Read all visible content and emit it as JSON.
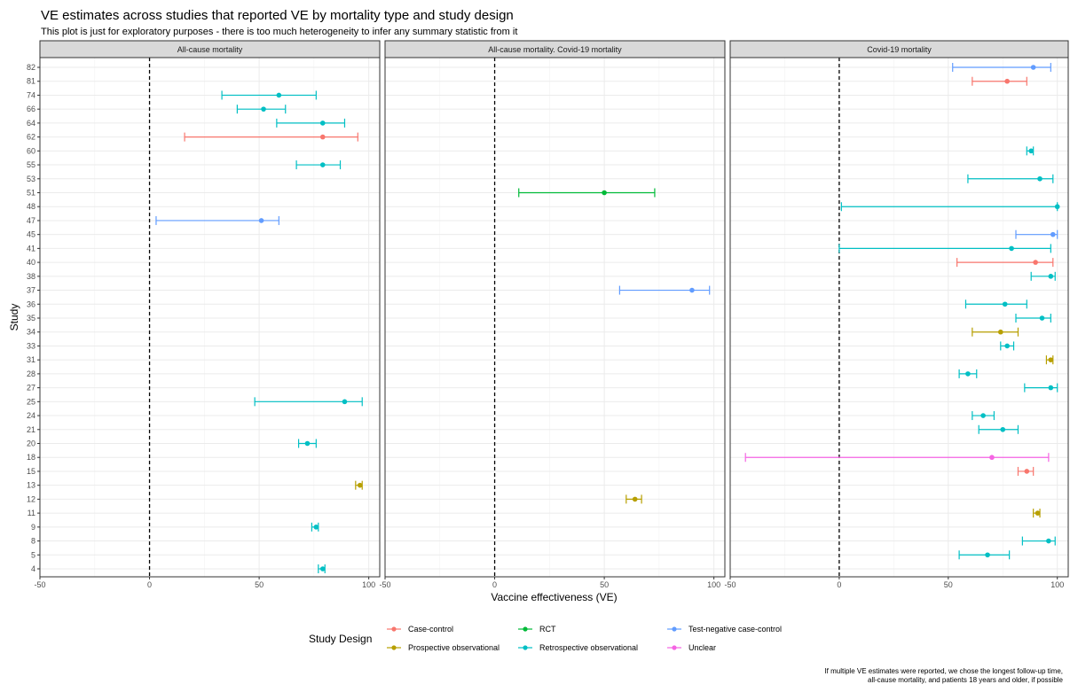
{
  "chart_data": {
    "type": "scatter",
    "title": "VE estimates across studies that reported VE by mortality type and study design",
    "subtitle": "This plot is just for exploratory purposes - there is too much heterogeneity to infer any summary statistic from it",
    "xlabel": "Vaccine effectiveness (VE)",
    "ylabel": "Study",
    "xlim": [
      -50,
      105
    ],
    "x_ticks": [
      -50,
      0,
      50,
      100
    ],
    "reference_line_x": 0,
    "studies": [
      "82",
      "81",
      "74",
      "66",
      "64",
      "62",
      "60",
      "55",
      "53",
      "51",
      "48",
      "47",
      "45",
      "41",
      "40",
      "38",
      "37",
      "36",
      "35",
      "34",
      "33",
      "31",
      "28",
      "27",
      "25",
      "24",
      "21",
      "20",
      "18",
      "15",
      "13",
      "12",
      "11",
      "9",
      "8",
      "5",
      "4"
    ],
    "panels": [
      "All-cause mortality",
      "All-cause mortality. Covid-19 mortality",
      "Covid-19 mortality"
    ],
    "legend_title": "Study Design",
    "legend_position": "bottom",
    "designs": [
      {
        "name": "Case-control",
        "color": "#F8766D"
      },
      {
        "name": "Prospective observational",
        "color": "#B79F00"
      },
      {
        "name": "RCT",
        "color": "#00BA38"
      },
      {
        "name": "Retrospective observational",
        "color": "#00BFC4"
      },
      {
        "name": "Test-negative case-control",
        "color": "#619CFF"
      },
      {
        "name": "Unclear",
        "color": "#F564E3"
      }
    ],
    "points": [
      {
        "panel": 0,
        "study": "74",
        "design": "Retrospective observational",
        "ve": 59,
        "lo": 33,
        "hi": 76
      },
      {
        "panel": 0,
        "study": "66",
        "design": "Retrospective observational",
        "ve": 52,
        "lo": 40,
        "hi": 62
      },
      {
        "panel": 0,
        "study": "64",
        "design": "Retrospective observational",
        "ve": 79,
        "lo": 58,
        "hi": 89
      },
      {
        "panel": 0,
        "study": "62",
        "design": "Case-control",
        "ve": 79,
        "lo": 16,
        "hi": 95
      },
      {
        "panel": 0,
        "study": "55",
        "design": "Retrospective observational",
        "ve": 79,
        "lo": 67,
        "hi": 87
      },
      {
        "panel": 0,
        "study": "47",
        "design": "Test-negative case-control",
        "ve": 51,
        "lo": 3,
        "hi": 59
      },
      {
        "panel": 0,
        "study": "25",
        "design": "Retrospective observational",
        "ve": 89,
        "lo": 48,
        "hi": 97
      },
      {
        "panel": 0,
        "study": "20",
        "design": "Retrospective observational",
        "ve": 72,
        "lo": 68,
        "hi": 76
      },
      {
        "panel": 0,
        "study": "13",
        "design": "Prospective observational",
        "ve": 96,
        "lo": 94,
        "hi": 97
      },
      {
        "panel": 0,
        "study": "9",
        "design": "Retrospective observational",
        "ve": 76,
        "lo": 74,
        "hi": 77
      },
      {
        "panel": 0,
        "study": "4",
        "design": "Retrospective observational",
        "ve": 79,
        "lo": 77,
        "hi": 80
      },
      {
        "panel": 1,
        "study": "51",
        "design": "RCT",
        "ve": 50,
        "lo": 11,
        "hi": 73
      },
      {
        "panel": 1,
        "study": "37",
        "design": "Test-negative case-control",
        "ve": 90,
        "lo": 57,
        "hi": 98
      },
      {
        "panel": 1,
        "study": "12",
        "design": "Prospective observational",
        "ve": 64,
        "lo": 60,
        "hi": 67
      },
      {
        "panel": 2,
        "study": "82",
        "design": "Test-negative case-control",
        "ve": 89,
        "lo": 52,
        "hi": 97
      },
      {
        "panel": 2,
        "study": "81",
        "design": "Case-control",
        "ve": 77,
        "lo": 61,
        "hi": 86
      },
      {
        "panel": 2,
        "study": "60",
        "design": "Retrospective observational",
        "ve": 88,
        "lo": 86,
        "hi": 89
      },
      {
        "panel": 2,
        "study": "53",
        "design": "Retrospective observational",
        "ve": 92,
        "lo": 59,
        "hi": 98
      },
      {
        "panel": 2,
        "study": "48",
        "design": "Retrospective observational",
        "ve": 100,
        "lo": 1,
        "hi": 100
      },
      {
        "panel": 2,
        "study": "45",
        "design": "Test-negative case-control",
        "ve": 98,
        "lo": 81,
        "hi": 100
      },
      {
        "panel": 2,
        "study": "41",
        "design": "Retrospective observational",
        "ve": 79,
        "lo": 0,
        "hi": 97
      },
      {
        "panel": 2,
        "study": "40",
        "design": "Case-control",
        "ve": 90,
        "lo": 54,
        "hi": 98
      },
      {
        "panel": 2,
        "study": "38",
        "design": "Retrospective observational",
        "ve": 97,
        "lo": 88,
        "hi": 99
      },
      {
        "panel": 2,
        "study": "36",
        "design": "Retrospective observational",
        "ve": 76,
        "lo": 58,
        "hi": 86
      },
      {
        "panel": 2,
        "study": "35",
        "design": "Retrospective observational",
        "ve": 93,
        "lo": 81,
        "hi": 97
      },
      {
        "panel": 2,
        "study": "34",
        "design": "Prospective observational",
        "ve": 74,
        "lo": 61,
        "hi": 82
      },
      {
        "panel": 2,
        "study": "33",
        "design": "Retrospective observational",
        "ve": 77,
        "lo": 74,
        "hi": 80
      },
      {
        "panel": 2,
        "study": "31",
        "design": "Prospective observational",
        "ve": 97,
        "lo": 95,
        "hi": 98
      },
      {
        "panel": 2,
        "study": "28",
        "design": "Retrospective observational",
        "ve": 59,
        "lo": 55,
        "hi": 63
      },
      {
        "panel": 2,
        "study": "27",
        "design": "Retrospective observational",
        "ve": 97,
        "lo": 85,
        "hi": 100
      },
      {
        "panel": 2,
        "study": "24",
        "design": "Retrospective observational",
        "ve": 66,
        "lo": 61,
        "hi": 71
      },
      {
        "panel": 2,
        "study": "21",
        "design": "Retrospective observational",
        "ve": 75,
        "lo": 64,
        "hi": 82
      },
      {
        "panel": 2,
        "study": "18",
        "design": "Unclear",
        "ve": 70,
        "lo": -43,
        "hi": 96
      },
      {
        "panel": 2,
        "study": "15",
        "design": "Case-control",
        "ve": 86,
        "lo": 82,
        "hi": 89
      },
      {
        "panel": 2,
        "study": "11",
        "design": "Prospective observational",
        "ve": 91,
        "lo": 89,
        "hi": 92
      },
      {
        "panel": 2,
        "study": "8",
        "design": "Retrospective observational",
        "ve": 96,
        "lo": 84,
        "hi": 99
      },
      {
        "panel": 2,
        "study": "5",
        "design": "Retrospective observational",
        "ve": 68,
        "lo": 55,
        "hi": 78
      }
    ],
    "caption_lines": [
      "If multiple VE estimates were reported, we chose the longest follow-up time,",
      "all-cause mortality, and patients 18 years and older, if possible"
    ]
  }
}
